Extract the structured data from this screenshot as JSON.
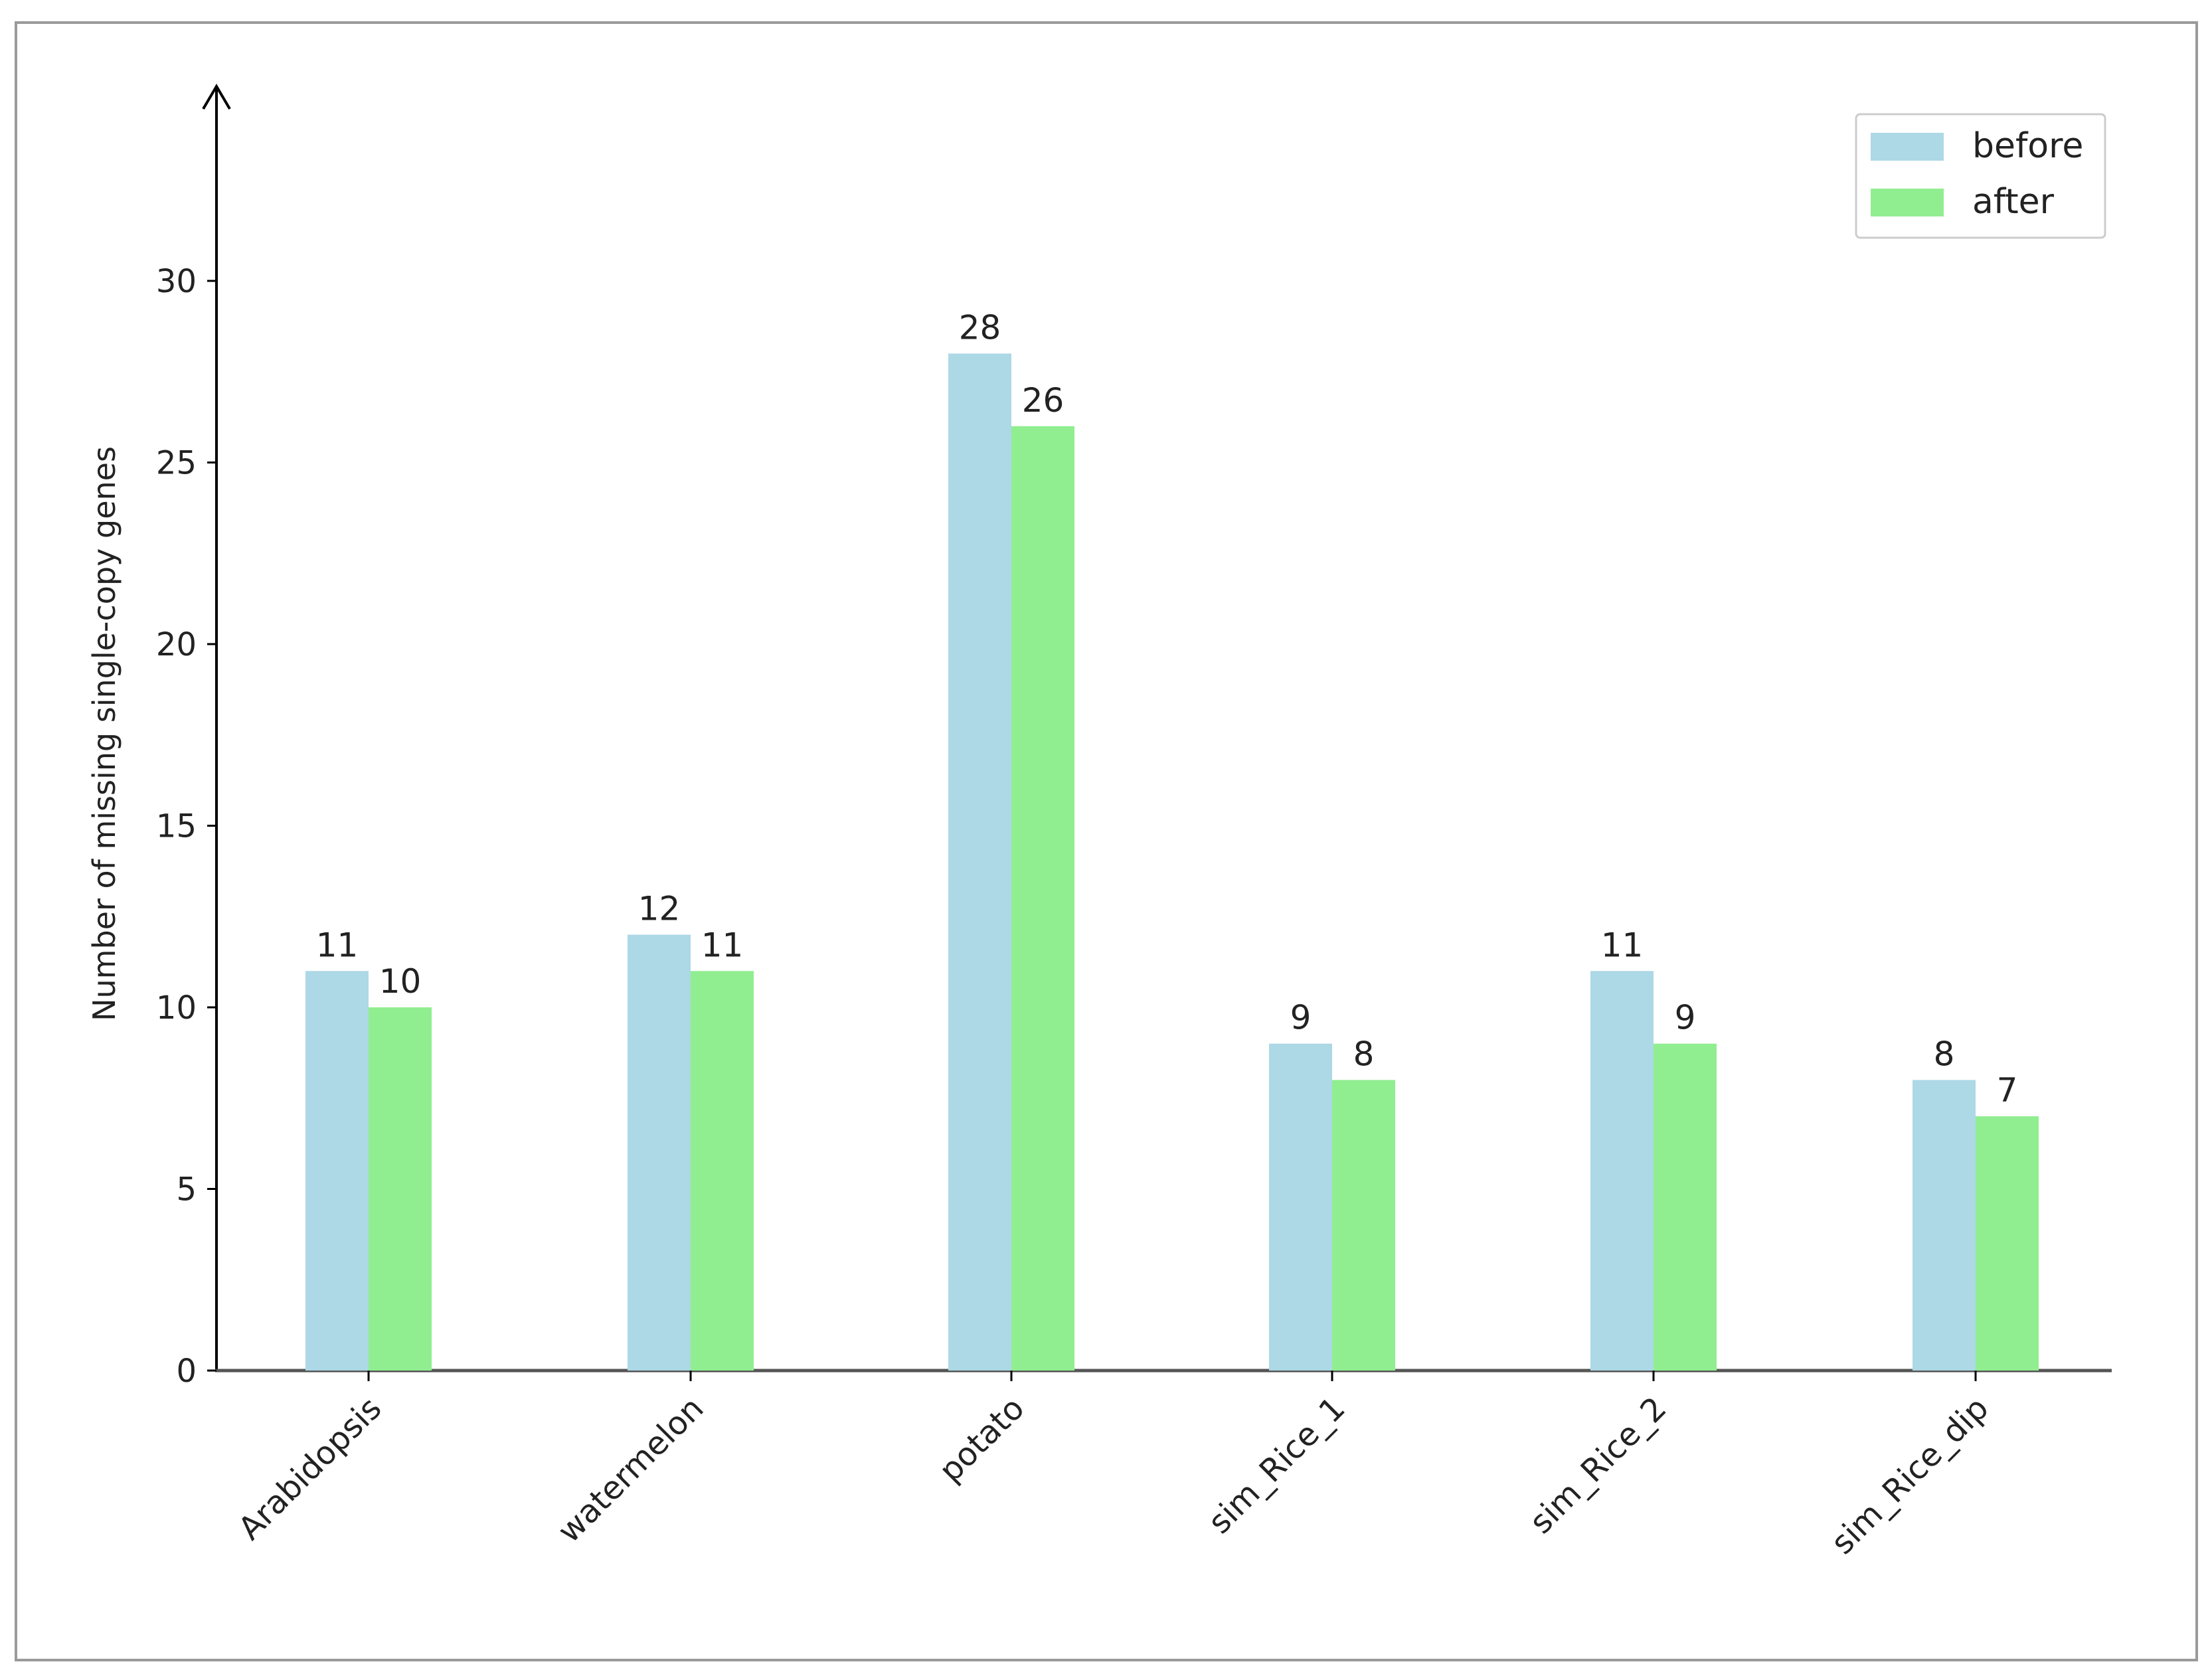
{
  "chart_data": {
    "type": "bar",
    "ylabel": "Number of missing single-copy genes",
    "xlabel": "",
    "ylim": [
      0,
      35
    ],
    "yticks": [
      "0",
      "5",
      "10",
      "15",
      "20",
      "25",
      "30"
    ],
    "categories": [
      "Arabidopsis",
      "watermelon",
      "potato",
      "sim_Rice_1",
      "sim_Rice_2",
      "sim_Rice_dip"
    ],
    "series": [
      {
        "name": "before",
        "color": "#add8e6",
        "values": [
          11,
          12,
          28,
          9,
          11,
          8
        ]
      },
      {
        "name": "after",
        "color": "#90ee90",
        "values": [
          10,
          11,
          26,
          8,
          9,
          7
        ]
      }
    ],
    "legend_position": "top-right",
    "grid": false
  }
}
